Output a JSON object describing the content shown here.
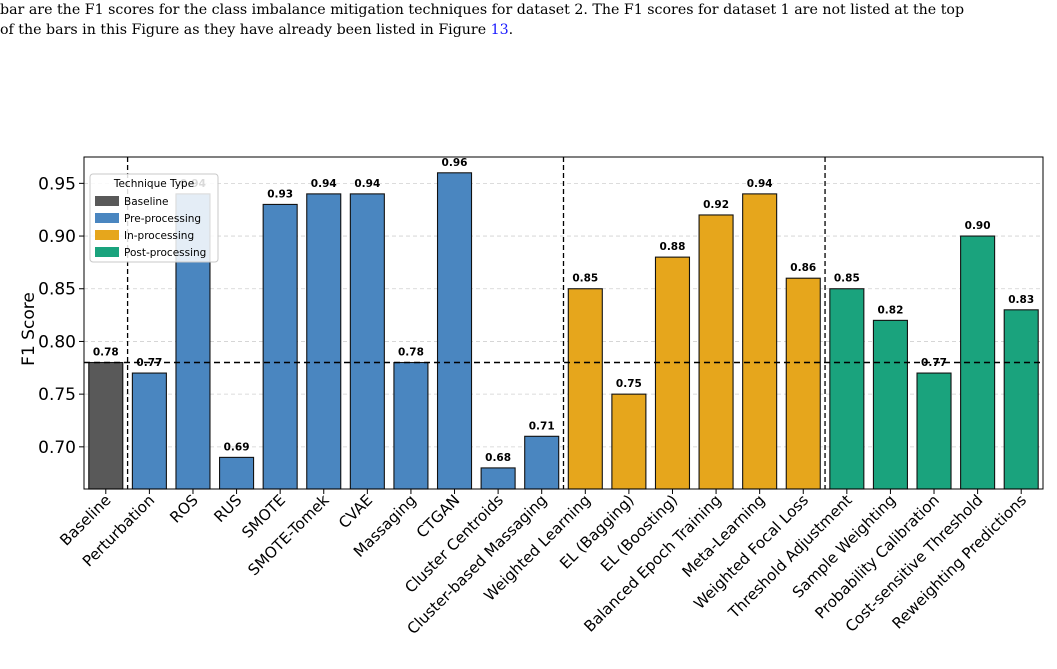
{
  "caption": {
    "line1": "bar are the F1 scores for the class imbalance mitigation techniques for dataset 2. The F1 scores for dataset 1 are not listed at the top",
    "line2_prefix": "of the bars in this Figure as they have already been listed in Figure ",
    "figure_ref": "13",
    "line2_suffix": "."
  },
  "chart_data": {
    "type": "bar",
    "title": "",
    "xlabel": "",
    "ylabel": "F1 Score",
    "ylim": [
      0.66,
      0.975
    ],
    "yticks": [
      "0.70",
      "0.75",
      "0.80",
      "0.85",
      "0.90",
      "0.95"
    ],
    "grid": "horizontal dashed",
    "reference_line": 0.78,
    "group_separators_after": [
      "Baseline",
      "Cluster-based Massaging",
      "Weighted Focal Loss"
    ],
    "categories": [
      "Baseline",
      "Perturbation",
      "ROS",
      "RUS",
      "SMOTE",
      "SMOTE-Tomek",
      "CVAE",
      "Massaging",
      "CTGAN",
      "Cluster Centroids",
      "Cluster-based Massaging",
      "Weighted Learning",
      "EL (Bagging)",
      "EL (Boosting)",
      "Balanced Epoch Training",
      "Meta-Learning",
      "Weighted Focal Loss",
      "Threshold Adjustment",
      "Sample Weighting",
      "Probability Calibration",
      "Cost-sensitive Threshold",
      "Reweighting Predictions"
    ],
    "values": [
      0.78,
      0.77,
      0.94,
      0.69,
      0.93,
      0.94,
      0.94,
      0.78,
      0.96,
      0.68,
      0.71,
      0.85,
      0.75,
      0.88,
      0.92,
      0.94,
      0.86,
      0.85,
      0.82,
      0.77,
      0.9,
      0.83
    ],
    "value_labels": [
      "0.78",
      "0.77",
      "0.94",
      "0.69",
      "0.93",
      "0.94",
      "0.94",
      "0.78",
      "0.96",
      "0.68",
      "0.71",
      "0.85",
      "0.75",
      "0.88",
      "0.92",
      "0.94",
      "0.86",
      "0.85",
      "0.82",
      "0.77",
      "0.90",
      "0.83"
    ],
    "groups": [
      "Baseline",
      "Pre-processing",
      "Pre-processing",
      "Pre-processing",
      "Pre-processing",
      "Pre-processing",
      "Pre-processing",
      "Pre-processing",
      "Pre-processing",
      "Pre-processing",
      "Pre-processing",
      "In-processing",
      "In-processing",
      "In-processing",
      "In-processing",
      "In-processing",
      "In-processing",
      "Post-processing",
      "Post-processing",
      "Post-processing",
      "Post-processing",
      "Post-processing"
    ],
    "legend": {
      "title": "Technique Type",
      "placement": "top-left",
      "entries": [
        {
          "name": "Baseline",
          "color": "#595959"
        },
        {
          "name": "Pre-processing",
          "color": "#4a86c0"
        },
        {
          "name": "In-processing",
          "color": "#e6a61c"
        },
        {
          "name": "Post-processing",
          "color": "#1aa37d"
        }
      ]
    }
  }
}
